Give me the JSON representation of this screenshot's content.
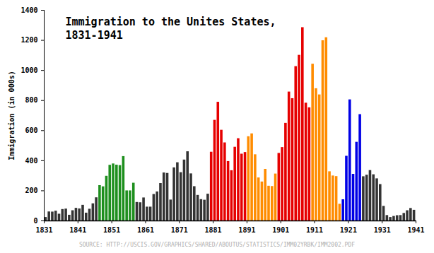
{
  "chart_data": {
    "type": "bar",
    "title": "Immigration to the Unites States, 1831-1941",
    "ylabel": "Immigration (in 000s)",
    "caption": "SOURCE: HTTP://USCIS.GOV/GRAPHICS/SHARED/ABOUTUS/STATISTICS/IMM02YRBK/IMM2002.PDF",
    "x": [
      1831,
      1832,
      1833,
      1834,
      1835,
      1836,
      1837,
      1838,
      1839,
      1840,
      1841,
      1842,
      1843,
      1844,
      1845,
      1846,
      1847,
      1848,
      1849,
      1850,
      1851,
      1852,
      1853,
      1854,
      1855,
      1856,
      1857,
      1858,
      1859,
      1860,
      1861,
      1862,
      1863,
      1864,
      1865,
      1866,
      1867,
      1868,
      1869,
      1870,
      1871,
      1872,
      1873,
      1874,
      1875,
      1876,
      1877,
      1878,
      1879,
      1880,
      1881,
      1882,
      1883,
      1884,
      1885,
      1886,
      1887,
      1888,
      1889,
      1890,
      1891,
      1892,
      1893,
      1894,
      1895,
      1896,
      1897,
      1898,
      1899,
      1900,
      1901,
      1902,
      1903,
      1904,
      1905,
      1906,
      1907,
      1908,
      1909,
      1910,
      1911,
      1912,
      1913,
      1914,
      1915,
      1916,
      1917,
      1918,
      1919,
      1920,
      1921,
      1922,
      1923,
      1924,
      1925,
      1926,
      1927,
      1928,
      1929,
      1930,
      1931,
      1932,
      1933,
      1934,
      1935,
      1936,
      1937,
      1938,
      1939,
      1940
    ],
    "values": [
      23,
      60,
      59,
      65,
      45,
      76,
      79,
      38,
      68,
      84,
      80,
      104,
      52,
      78,
      114,
      154,
      235,
      227,
      297,
      370,
      379,
      371,
      368,
      428,
      200,
      200,
      251,
      123,
      121,
      153,
      92,
      92,
      176,
      193,
      249,
      319,
      316,
      139,
      353,
      387,
      321,
      405,
      460,
      313,
      228,
      170,
      142,
      138,
      178,
      457,
      669,
      789,
      603,
      519,
      395,
      334,
      490,
      547,
      444,
      455,
      560,
      579,
      440,
      286,
      259,
      343,
      231,
      229,
      312,
      449,
      488,
      649,
      857,
      813,
      1026,
      1101,
      1285,
      783,
      752,
      1042,
      879,
      838,
      1198,
      1218,
      327,
      299,
      295,
      111,
      141,
      430,
      805,
      310,
      523,
      707,
      294,
      304,
      335,
      307,
      280,
      242,
      97,
      36,
      23,
      30,
      35,
      36,
      50,
      68,
      83,
      71
    ],
    "colors": [
      "#333333",
      "#333333",
      "#333333",
      "#333333",
      "#333333",
      "#333333",
      "#333333",
      "#333333",
      "#333333",
      "#333333",
      "#333333",
      "#333333",
      "#333333",
      "#333333",
      "#333333",
      "#333333",
      "#1e8f1e",
      "#1e8f1e",
      "#1e8f1e",
      "#1e8f1e",
      "#1e8f1e",
      "#1e8f1e",
      "#1e8f1e",
      "#1e8f1e",
      "#1e8f1e",
      "#1e8f1e",
      "#1e8f1e",
      "#333333",
      "#333333",
      "#333333",
      "#333333",
      "#333333",
      "#333333",
      "#333333",
      "#333333",
      "#333333",
      "#333333",
      "#333333",
      "#333333",
      "#333333",
      "#333333",
      "#333333",
      "#333333",
      "#333333",
      "#333333",
      "#333333",
      "#333333",
      "#333333",
      "#333333",
      "#e60000",
      "#e60000",
      "#e60000",
      "#e60000",
      "#e60000",
      "#e60000",
      "#e60000",
      "#e60000",
      "#e60000",
      "#e60000",
      "#e60000",
      "#ff8c00",
      "#ff8c00",
      "#ff8c00",
      "#ff8c00",
      "#ff8c00",
      "#ff8c00",
      "#ff8c00",
      "#ff8c00",
      "#ff8c00",
      "#e60000",
      "#e60000",
      "#e60000",
      "#e60000",
      "#e60000",
      "#e60000",
      "#e60000",
      "#e60000",
      "#e60000",
      "#e60000",
      "#ff8c00",
      "#ff8c00",
      "#ff8c00",
      "#ff8c00",
      "#ff8c00",
      "#ff8c00",
      "#ff8c00",
      "#ff8c00",
      "#ff8c00",
      "#0000e6",
      "#0000e6",
      "#0000e6",
      "#0000e6",
      "#0000e6",
      "#0000e6",
      "#333333",
      "#333333",
      "#333333",
      "#333333",
      "#333333",
      "#333333",
      "#333333",
      "#333333",
      "#333333",
      "#333333",
      "#333333",
      "#333333",
      "#333333",
      "#333333",
      "#333333",
      "#333333"
    ],
    "xlim": [
      1831,
      1941
    ],
    "xticks": [
      1831,
      1841,
      1851,
      1861,
      1871,
      1881,
      1891,
      1901,
      1911,
      1921,
      1931,
      1941
    ],
    "ylim": [
      0,
      1400
    ],
    "yticks": [
      0,
      200,
      400,
      600,
      800,
      1000,
      1200,
      1400
    ],
    "grid": false
  }
}
